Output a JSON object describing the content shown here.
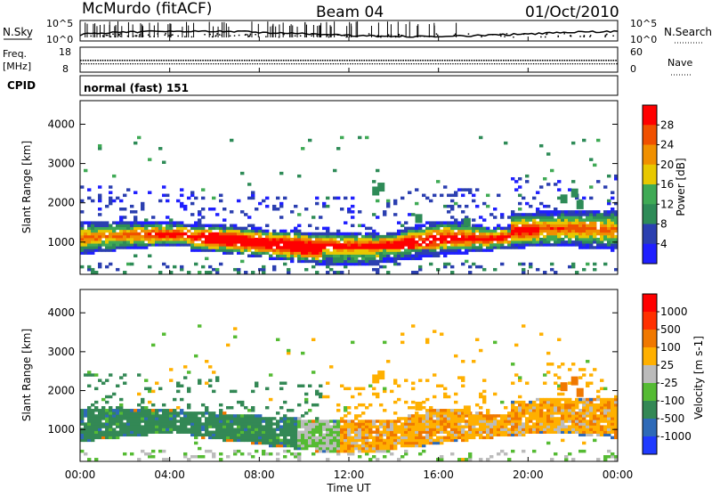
{
  "header": {
    "station": "McMurdo (fitACF)",
    "beam": "Beam 04",
    "date": "01/Oct/2010"
  },
  "panels": {
    "sky": {
      "label": "N.Sky",
      "right_label": "N.Search",
      "left_ticks": [
        "10^5",
        "10^0"
      ],
      "right_ticks": [
        "10^5",
        "10^0"
      ]
    },
    "freq": {
      "label_top": "Freq.",
      "label_unit": "[MHz]",
      "right_label": "Nave",
      "left_ticks": [
        "18",
        "8"
      ],
      "right_ticks": [
        "60",
        "0"
      ]
    },
    "cpid": {
      "label": "CPID",
      "text": "normal (fast) 151"
    }
  },
  "colors": {
    "power": [
      "#1f1fff",
      "#2b3fb0",
      "#2e8b57",
      "#3faa55",
      "#e8c800",
      "#f09000",
      "#f05000",
      "#ff0000"
    ],
    "velocity": [
      "#ff0000",
      "#ff3000",
      "#f07800",
      "#ffb000",
      "#bbbbbb",
      "#55bb33",
      "#338855",
      "#2e6ab8",
      "#1f3aff"
    ]
  },
  "chart_data": [
    {
      "type": "heatmap",
      "title": "Power",
      "xlabel": "",
      "ylabel": "Slant Range [km]",
      "xlim": [
        "00:00",
        "00:00"
      ],
      "x_ticks": [
        "00:00",
        "04:00",
        "08:00",
        "12:00",
        "16:00",
        "20:00",
        "00:00"
      ],
      "ylim": [
        180,
        4600
      ],
      "y_ticks": [
        1000,
        2000,
        3000,
        4000
      ],
      "colorbar": {
        "label": "Power [dB]",
        "ticks": [
          4,
          8,
          12,
          16,
          20,
          24,
          28
        ],
        "range": [
          0,
          32
        ]
      }
    },
    {
      "type": "heatmap",
      "title": "Velocity",
      "xlabel": "Time UT",
      "ylabel": "Slant Range [km]",
      "xlim": [
        "00:00",
        "00:00"
      ],
      "x_ticks": [
        "00:00",
        "04:00",
        "08:00",
        "12:00",
        "16:00",
        "20:00",
        "00:00"
      ],
      "ylim": [
        180,
        4600
      ],
      "y_ticks": [
        1000,
        2000,
        3000,
        4000
      ],
      "colorbar": {
        "label": "Velocity [m s-1]",
        "ticks": [
          "1000",
          "500",
          "100",
          "25",
          "-25",
          "-100",
          "-500",
          "-1000"
        ]
      }
    }
  ]
}
